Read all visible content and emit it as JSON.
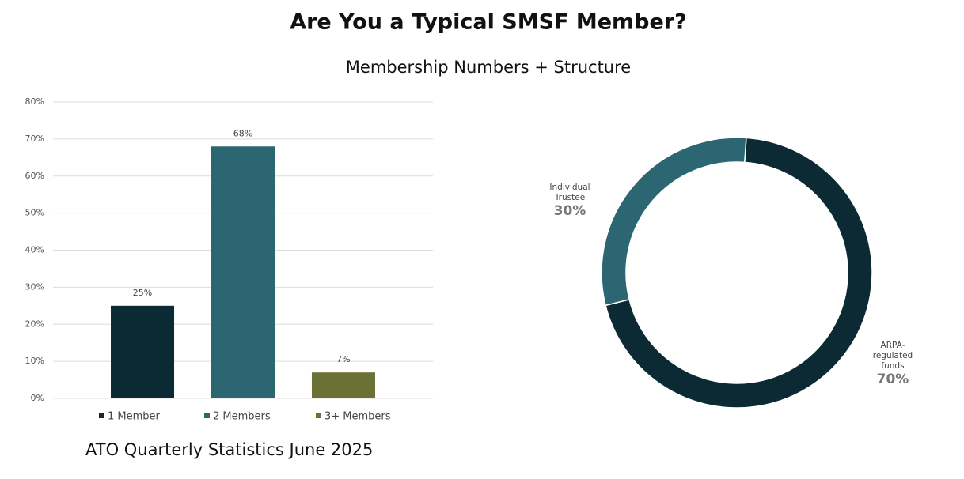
{
  "title": "Are You a Typical SMSF Member?",
  "subtitle": "Membership Numbers + Structure",
  "source": "ATO Quarterly Statistics June 2025",
  "chart_data": [
    {
      "type": "bar",
      "categories": [
        null
      ],
      "series": [
        {
          "name": "1 Member",
          "color": "#0b2a33",
          "values": [
            25
          ],
          "value_labels": [
            "25%"
          ]
        },
        {
          "name": "2 Members",
          "color": "#2c6673",
          "values": [
            68
          ],
          "value_labels": [
            "68%"
          ]
        },
        {
          "name": "3+ Members",
          "color": "#6b7035",
          "values": [
            7
          ],
          "value_labels": [
            "7%"
          ]
        }
      ],
      "ylim": [
        0,
        80
      ],
      "yticks": [
        {
          "value": 0,
          "label": "0%"
        },
        {
          "value": 10,
          "label": "10%"
        },
        {
          "value": 20,
          "label": "20%"
        },
        {
          "value": 30,
          "label": "30%"
        },
        {
          "value": 40,
          "label": "40%"
        },
        {
          "value": 50,
          "label": "50%"
        },
        {
          "value": 60,
          "label": "60%"
        },
        {
          "value": 70,
          "label": "70%"
        },
        {
          "value": 80,
          "label": "80%"
        }
      ],
      "grid": true,
      "legend": "bottom"
    },
    {
      "type": "donut",
      "categories": [
        "ARPA-regulated funds",
        "Individual Trustee"
      ],
      "values": [
        70,
        30
      ],
      "value_labels": [
        "70%",
        "30%"
      ],
      "colors": [
        "#0b2a33",
        "#2c6673"
      ]
    }
  ]
}
